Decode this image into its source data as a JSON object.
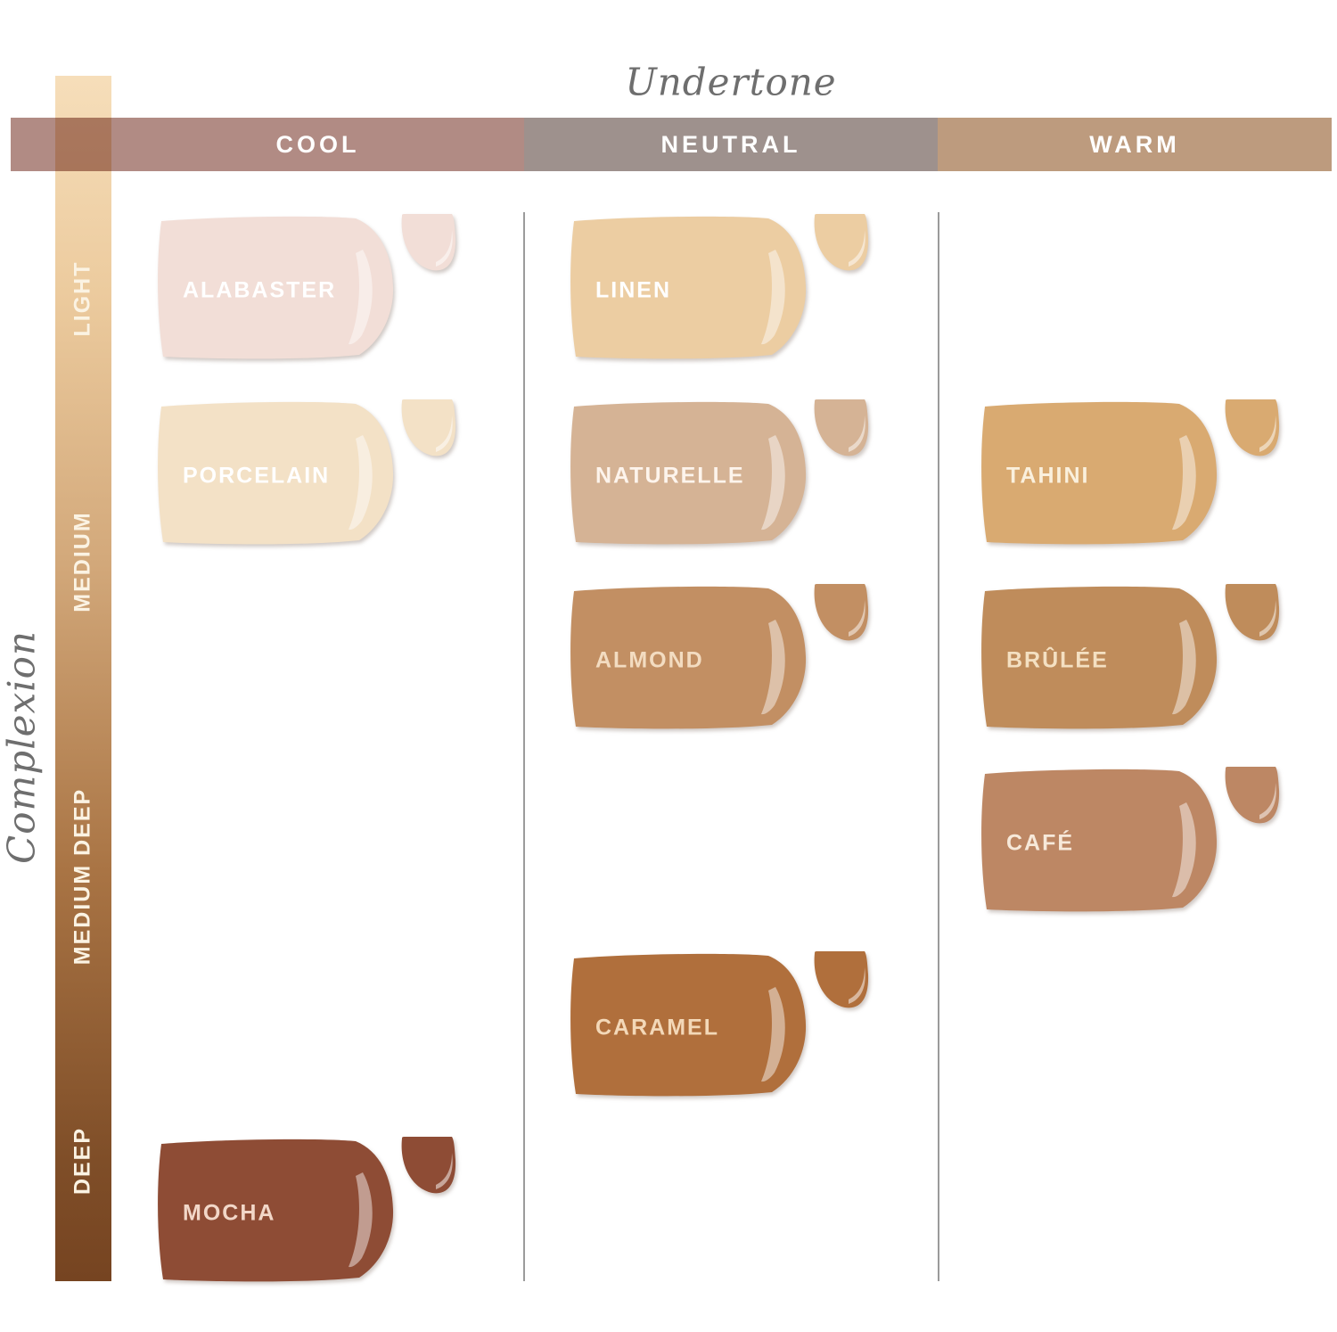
{
  "axes": {
    "undertone_title": "Undertone",
    "complexion_title": "Complexion"
  },
  "undertone_columns": [
    {
      "id": "cool",
      "label": "COOL",
      "color": "#b18b84"
    },
    {
      "id": "neutral",
      "label": "NEUTRAL",
      "color": "#9e918d"
    },
    {
      "id": "warm",
      "label": "WARM",
      "color": "#bd9b7e"
    }
  ],
  "complexion_levels": [
    {
      "label": "LIGHT"
    },
    {
      "label": "MEDIUM"
    },
    {
      "label": "MEDIUM DEEP"
    },
    {
      "label": "DEEP"
    }
  ],
  "complexion_bar": {
    "gradient": [
      "#f6deba",
      "#eccb9e",
      "#d3a97b",
      "#a97444",
      "#7f4e28",
      "#764421"
    ],
    "gradient_stops": [
      "0%",
      "18%",
      "40%",
      "66%",
      "90%",
      "100%"
    ]
  },
  "shades": [
    {
      "name": "ALABASTER",
      "color": "#f2ded7",
      "label_color": "#ffffff",
      "undertone": "cool",
      "complexion": "LIGHT",
      "row_slot": 0
    },
    {
      "name": "LINEN",
      "color": "#eccda2",
      "label_color": "#ffffff",
      "undertone": "neutral",
      "complexion": "LIGHT",
      "row_slot": 0
    },
    {
      "name": "PORCELAIN",
      "color": "#f3e1c6",
      "label_color": "#ffffff",
      "undertone": "cool",
      "complexion": "MEDIUM",
      "row_slot": 1
    },
    {
      "name": "NATURELLE",
      "color": "#d5b395",
      "label_color": "#fdf4ec",
      "undertone": "neutral",
      "complexion": "MEDIUM",
      "row_slot": 1
    },
    {
      "name": "TAHINI",
      "color": "#d9aa71",
      "label_color": "#faf0dd",
      "undertone": "warm",
      "complexion": "MEDIUM",
      "row_slot": 1
    },
    {
      "name": "ALMOND",
      "color": "#c28f63",
      "label_color": "#f3dcc1",
      "undertone": "neutral",
      "complexion": "MEDIUM",
      "row_slot": 2
    },
    {
      "name": "BRÛLÉE",
      "color": "#bf8c5b",
      "label_color": "#f4e0c2",
      "undertone": "warm",
      "complexion": "MEDIUM",
      "row_slot": 2
    },
    {
      "name": "CAFÉ",
      "color": "#bd8764",
      "label_color": "#f7e9da",
      "undertone": "warm",
      "complexion": "MEDIUM DEEP",
      "row_slot": 3
    },
    {
      "name": "CARAMEL",
      "color": "#b06f3c",
      "label_color": "#f3d8b8",
      "undertone": "neutral",
      "complexion": "MEDIUM DEEP",
      "row_slot": 4
    },
    {
      "name": "MOCHA",
      "color": "#8e4c35",
      "label_color": "#f2d7c8",
      "undertone": "cool",
      "complexion": "DEEP",
      "row_slot": 5
    }
  ],
  "chart_data": {
    "type": "table",
    "title": "Foundation shade matrix",
    "x_axis": {
      "title": "Undertone",
      "categories": [
        "COOL",
        "NEUTRAL",
        "WARM"
      ]
    },
    "y_axis": {
      "title": "Complexion",
      "categories": [
        "LIGHT",
        "MEDIUM",
        "MEDIUM DEEP",
        "DEEP"
      ]
    },
    "cells": [
      {
        "shade": "ALABASTER",
        "undertone": "COOL",
        "complexion": "LIGHT",
        "hex": "#f2ded7"
      },
      {
        "shade": "LINEN",
        "undertone": "NEUTRAL",
        "complexion": "LIGHT",
        "hex": "#eccda2"
      },
      {
        "shade": "PORCELAIN",
        "undertone": "COOL",
        "complexion": "MEDIUM",
        "hex": "#f3e1c6"
      },
      {
        "shade": "NATURELLE",
        "undertone": "NEUTRAL",
        "complexion": "MEDIUM",
        "hex": "#d5b395"
      },
      {
        "shade": "TAHINI",
        "undertone": "WARM",
        "complexion": "MEDIUM",
        "hex": "#d9aa71"
      },
      {
        "shade": "ALMOND",
        "undertone": "NEUTRAL",
        "complexion": "MEDIUM",
        "hex": "#c28f63"
      },
      {
        "shade": "BRÛLÉE",
        "undertone": "WARM",
        "complexion": "MEDIUM",
        "hex": "#bf8c5b"
      },
      {
        "shade": "CAFÉ",
        "undertone": "WARM",
        "complexion": "MEDIUM DEEP",
        "hex": "#bd8764"
      },
      {
        "shade": "CARAMEL",
        "undertone": "NEUTRAL",
        "complexion": "MEDIUM DEEP",
        "hex": "#b06f3c"
      },
      {
        "shade": "MOCHA",
        "undertone": "COOL",
        "complexion": "DEEP",
        "hex": "#8e4c35"
      }
    ],
    "legend_position": "none",
    "grid": false
  }
}
